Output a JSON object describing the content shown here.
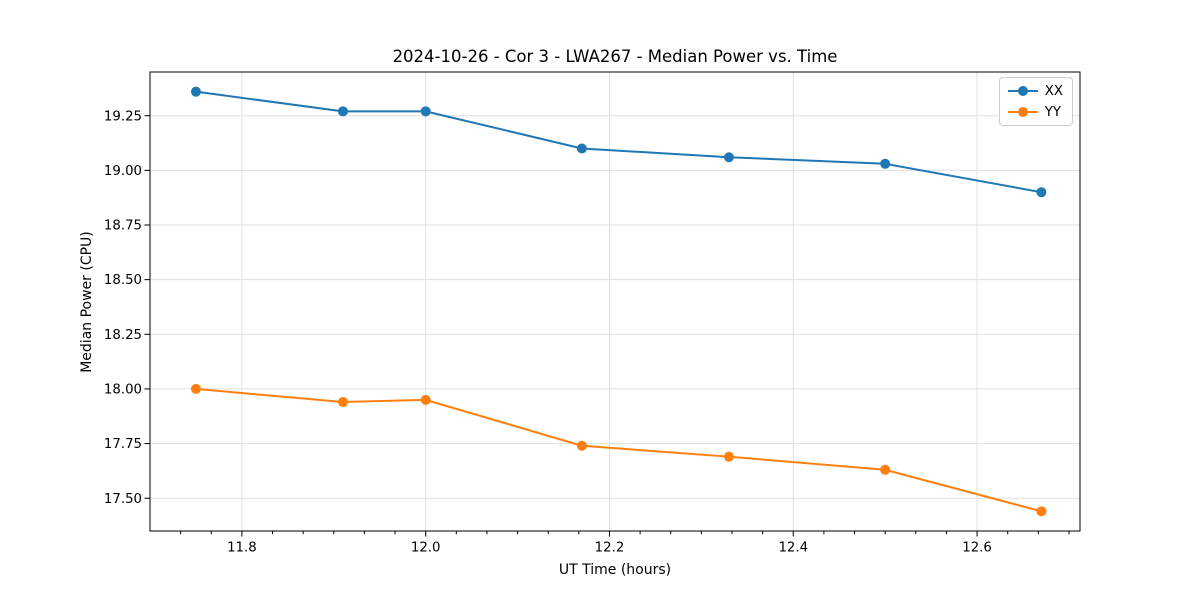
{
  "chart_data": {
    "type": "line",
    "title": "2024-10-26 - Cor 3 - LWA267 - Median Power vs. Time",
    "xlabel": "UT Time (hours)",
    "ylabel": "Median Power (CPU)",
    "x": [
      11.75,
      11.91,
      12.0,
      12.17,
      12.33,
      12.5,
      12.67
    ],
    "series": [
      {
        "name": "XX",
        "color": "#1f77b4",
        "values": [
          19.36,
          19.27,
          19.27,
          19.1,
          19.06,
          19.03,
          18.9
        ]
      },
      {
        "name": "YY",
        "color": "#ff7f0e",
        "values": [
          18.0,
          17.94,
          17.95,
          17.74,
          17.69,
          17.63,
          17.44
        ]
      }
    ],
    "xlim": [
      11.7,
      12.712
    ],
    "ylim": [
      17.35,
      19.45
    ],
    "xticks": [
      11.8,
      12.0,
      12.2,
      12.4,
      12.6
    ],
    "xtick_labels": [
      "11.8",
      "12.0",
      "12.2",
      "12.4",
      "12.6"
    ],
    "yticks": [
      17.5,
      17.75,
      18.0,
      18.25,
      18.5,
      18.75,
      19.0,
      19.25
    ],
    "ytick_labels": [
      "17.50",
      "17.75",
      "18.00",
      "18.25",
      "18.50",
      "18.75",
      "19.00",
      "19.25"
    ],
    "x_minor_tick_step": 0.0333333,
    "grid": true,
    "marker": "circle",
    "line_style": "solid",
    "legend": {
      "position": "upper right",
      "entries": [
        "XX",
        "YY"
      ]
    }
  },
  "colors": {
    "grid": "#e0e0e0",
    "spine": "#000000",
    "tick": "#000000",
    "text": "#000000",
    "background": "#ffffff",
    "series_xx": "#1f77b4",
    "series_yy": "#ff7f0e"
  }
}
